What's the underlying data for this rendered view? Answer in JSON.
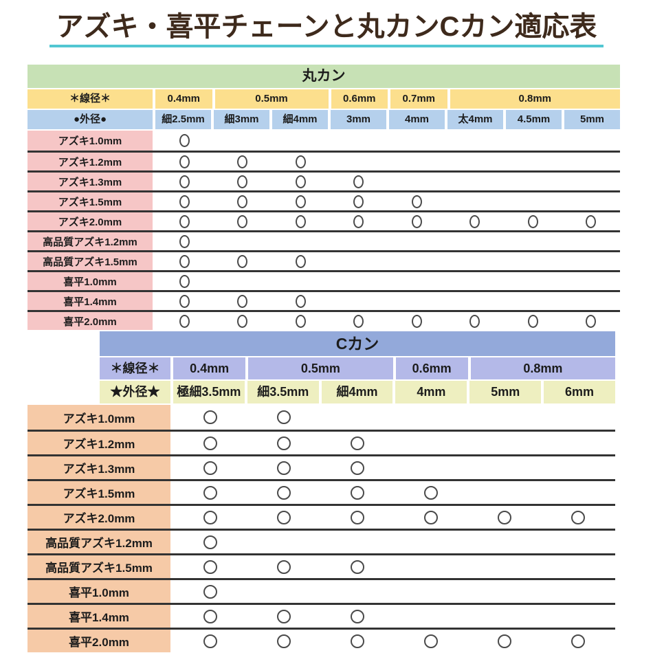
{
  "title": "アズキ・喜平チェーンと丸カンCカン適応表",
  "palette": {
    "title_text": "#3e2a1c",
    "title_underline": "#52c7d2",
    "text_color": "#1c1c1c",
    "row_line": "#333333",
    "mark_color": "#4a4a4a",
    "maru_header_bg": "#c7e1b5",
    "maru_wire_bg": "#fcdf8d",
    "maru_outer_bg": "#b5d0ec",
    "maru_label_bg": "#f6c6c6",
    "c_header_bg": "#93a9da",
    "c_wire_bg": "#b4b9e8",
    "c_outer_bg": "#eeefc0",
    "c_label_bg": "#f6caa7"
  },
  "chart_data": [
    {
      "type": "table",
      "title": "丸カン",
      "wire_dia_label": "＊線径＊",
      "outer_dia_label": "●外径●",
      "wire_dia_groups": [
        {
          "label": "0.4mm",
          "span": 1
        },
        {
          "label": "0.5mm",
          "span": 2
        },
        {
          "label": "0.6mm",
          "span": 1
        },
        {
          "label": "0.7mm",
          "span": 1
        },
        {
          "label": "0.8mm",
          "span": 3
        }
      ],
      "outer_dia_cols": [
        "細2.5mm",
        "細3mm",
        "細4mm",
        "3mm",
        "4mm",
        "太4mm",
        "4.5mm",
        "5mm"
      ],
      "mark": "○",
      "rows": [
        {
          "label": "アズキ1.0mm",
          "marks": [
            1,
            0,
            0,
            0,
            0,
            0,
            0,
            0
          ]
        },
        {
          "label": "アズキ1.2mm",
          "marks": [
            1,
            1,
            1,
            0,
            0,
            0,
            0,
            0
          ]
        },
        {
          "label": "アズキ1.3mm",
          "marks": [
            1,
            1,
            1,
            1,
            0,
            0,
            0,
            0
          ]
        },
        {
          "label": "アズキ1.5mm",
          "marks": [
            1,
            1,
            1,
            1,
            1,
            0,
            0,
            0
          ]
        },
        {
          "label": "アズキ2.0mm",
          "marks": [
            1,
            1,
            1,
            1,
            1,
            1,
            1,
            1
          ]
        },
        {
          "label": "高品質アズキ1.2mm",
          "marks": [
            1,
            0,
            0,
            0,
            0,
            0,
            0,
            0
          ]
        },
        {
          "label": "高品質アズキ1.5mm",
          "marks": [
            1,
            1,
            1,
            0,
            0,
            0,
            0,
            0
          ]
        },
        {
          "label": "喜平1.0mm",
          "marks": [
            1,
            0,
            0,
            0,
            0,
            0,
            0,
            0
          ]
        },
        {
          "label": "喜平1.4mm",
          "marks": [
            1,
            1,
            1,
            0,
            0,
            0,
            0,
            0
          ]
        },
        {
          "label": "喜平2.0mm",
          "marks": [
            1,
            1,
            1,
            1,
            1,
            1,
            1,
            1
          ]
        }
      ]
    },
    {
      "type": "table",
      "title": "Cカン",
      "wire_dia_label": "＊線径＊",
      "outer_dia_label": "★外径★",
      "wire_dia_groups": [
        {
          "label": "0.4mm",
          "span": 1
        },
        {
          "label": "0.5mm",
          "span": 2
        },
        {
          "label": "0.6mm",
          "span": 1
        },
        {
          "label": "0.8mm",
          "span": 2
        }
      ],
      "outer_dia_cols": [
        "極細3.5mm",
        "細3.5mm",
        "細4mm",
        "4mm",
        "5mm",
        "6mm"
      ],
      "mark": "○",
      "rows": [
        {
          "label": "アズキ1.0mm",
          "marks": [
            1,
            1,
            0,
            0,
            0,
            0
          ]
        },
        {
          "label": "アズキ1.2mm",
          "marks": [
            1,
            1,
            1,
            0,
            0,
            0
          ]
        },
        {
          "label": "アズキ1.3mm",
          "marks": [
            1,
            1,
            1,
            0,
            0,
            0
          ]
        },
        {
          "label": "アズキ1.5mm",
          "marks": [
            1,
            1,
            1,
            1,
            0,
            0
          ]
        },
        {
          "label": "アズキ2.0mm",
          "marks": [
            1,
            1,
            1,
            1,
            1,
            1
          ]
        },
        {
          "label": "高品質アズキ1.2mm",
          "marks": [
            1,
            0,
            0,
            0,
            0,
            0
          ]
        },
        {
          "label": "高品質アズキ1.5mm",
          "marks": [
            1,
            1,
            1,
            0,
            0,
            0
          ]
        },
        {
          "label": "喜平1.0mm",
          "marks": [
            1,
            0,
            0,
            0,
            0,
            0
          ]
        },
        {
          "label": "喜平1.4mm",
          "marks": [
            1,
            1,
            1,
            0,
            0,
            0
          ]
        },
        {
          "label": "喜平2.0mm",
          "marks": [
            1,
            1,
            1,
            1,
            1,
            1
          ]
        }
      ]
    }
  ]
}
